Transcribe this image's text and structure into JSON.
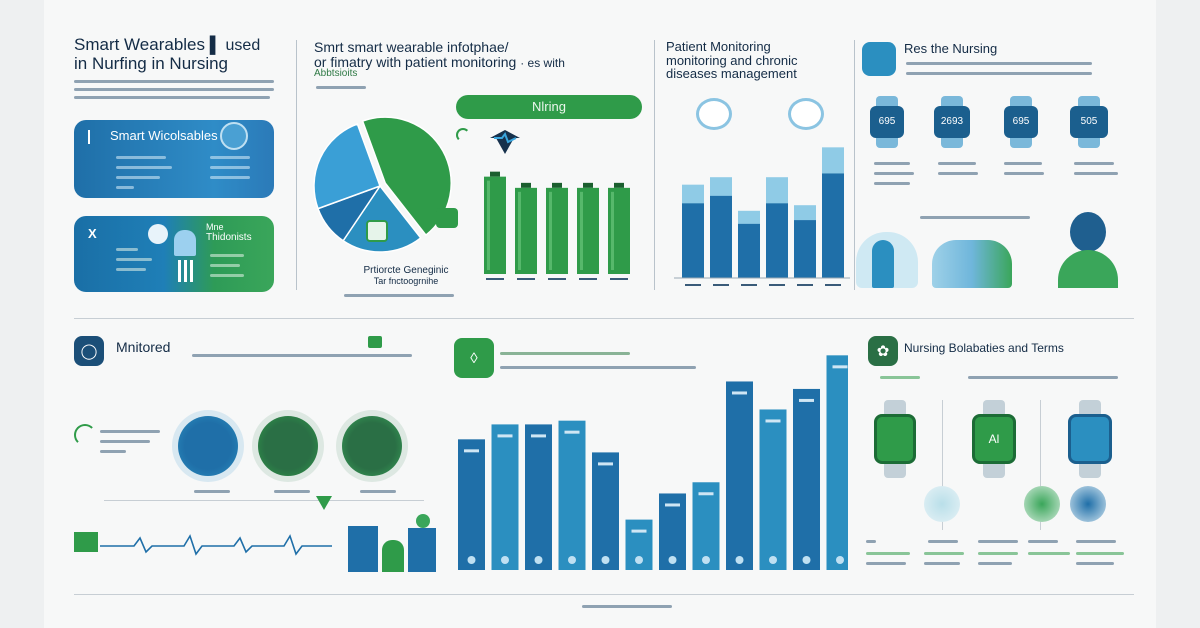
{
  "panel1": {
    "title_line1": "Smart Wearables",
    "title_suffix": "▌ used",
    "title_line2": "in Nurfing in Nursing",
    "card1_label": "Smart Wicolsables",
    "card2_label_a": "X",
    "card2_label_b": "Mne",
    "card2_label_c": "Thidonists"
  },
  "panel2": {
    "title_line1": "Smrt smart wearable infotphae/",
    "title_line2": "or fimatry with patient monitoring ",
    "title_tail": "· es with",
    "title_line3": "Abbtsioits",
    "pill": "Nlring",
    "caption_line1": "Prtiorcte Geneginic",
    "caption_line2": "Tar fnctoogrnihe"
  },
  "panel3": {
    "title_line1": "Patient Monitoring",
    "title_line2": "monitoring and chronic",
    "title_line3": "diseases management"
  },
  "panel4": {
    "title": "Res the Nursing",
    "watch_readings": [
      "695",
      "2693",
      "695",
      "505"
    ]
  },
  "panel5": {
    "title": "Mnitored"
  },
  "panel8": {
    "title": "Nursing Bolabaties and Terms",
    "watch_readings": [
      "",
      "Al",
      ""
    ]
  },
  "colors": {
    "navy": "#17324d",
    "blue": "#1f6fa8",
    "teal": "#2b8fc0",
    "green": "#2f9b49",
    "light_blue": "#6fb6db"
  },
  "icons": {
    "panel1_card1": "watch-icon",
    "panel1_card2": "chat-bubble-icon",
    "panel2_header": "heart-monitor-icon",
    "panel4_header": "puzzle-icon",
    "panel5_header": "stethoscope-icon",
    "panel6_header": "apple-icon",
    "panel8_header": "plant-icon"
  },
  "chart_data": [
    {
      "type": "pie",
      "title": "",
      "slices": [
        {
          "color": "#2f9b49",
          "value": 45
        },
        {
          "color": "#2b8fc0",
          "value": 20
        },
        {
          "color": "#1f6fa8",
          "value": 10
        },
        {
          "color": "#3a9fd6",
          "value": 25
        }
      ]
    },
    {
      "type": "bar",
      "title": "",
      "values": [
        113,
        100,
        100,
        100,
        100
      ],
      "ylim": [
        0,
        130
      ]
    },
    {
      "type": "bar",
      "title": "",
      "series": [
        {
          "name": "",
          "values": [
            100,
            108,
            72,
            108,
            78,
            140
          ]
        },
        {
          "name": "",
          "values": [
            80,
            88,
            58,
            80,
            62,
            112
          ]
        }
      ],
      "ylim": [
        0,
        150
      ]
    },
    {
      "type": "bar",
      "title": "",
      "values": [
        140,
        156,
        156,
        160,
        126,
        54,
        82,
        94,
        202,
        172,
        194,
        230
      ],
      "ylim": [
        0,
        240
      ]
    }
  ]
}
